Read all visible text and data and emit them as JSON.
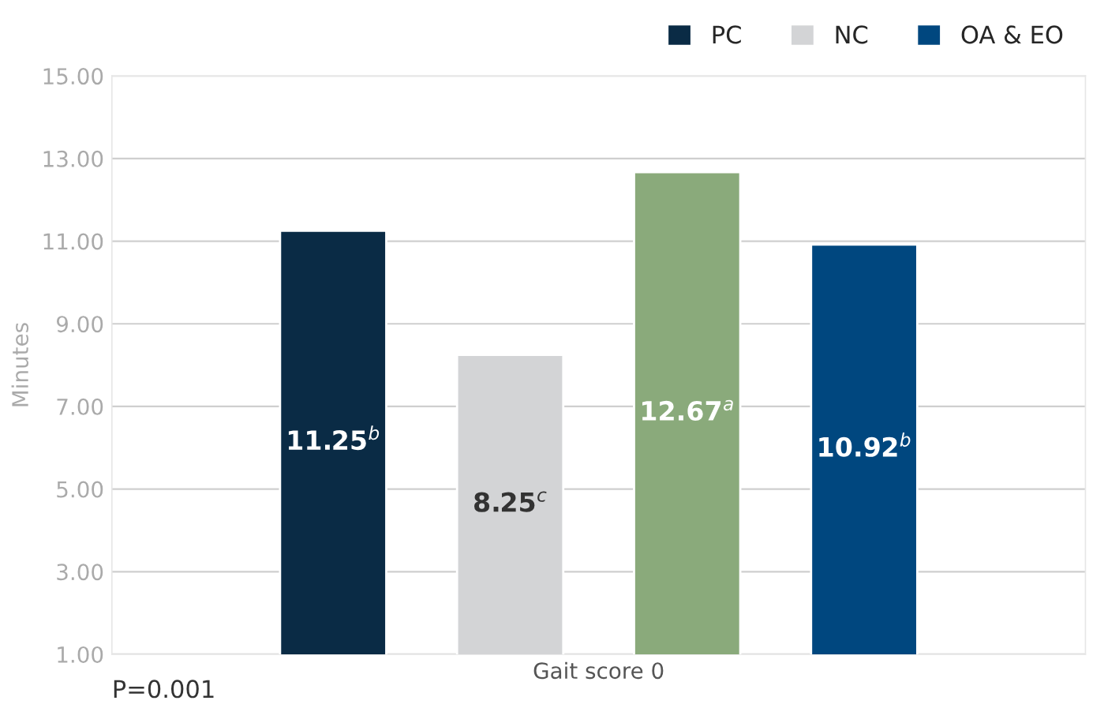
{
  "chart_data": {
    "type": "bar",
    "ylabel": "Minutes",
    "categories": [
      "Gait score 0"
    ],
    "series": [
      {
        "name": "PC",
        "color": "#0a2b45",
        "values": [
          11.25
        ],
        "value_labels": [
          "11.25$^{b}$"
        ]
      },
      {
        "name": "NC",
        "color": "#d3d4d6",
        "values": [
          8.25
        ],
        "value_labels": [
          "8.25$^{c}$"
        ]
      },
      {
        "color": "#8aaa7b",
        "values": [
          12.67
        ],
        "value_labels": [
          "12.67$^{a}$"
        ]
      },
      {
        "name": "OA & EO",
        "color": "#00477f",
        "values": [
          10.92
        ],
        "value_labels": [
          "10.92$^{b}$"
        ]
      }
    ],
    "ylim": [
      1,
      15
    ],
    "yticks": [
      {
        "value": 1,
        "label": "1.00"
      },
      {
        "value": 3,
        "label": "3.00"
      },
      {
        "value": 5,
        "label": "5.00"
      },
      {
        "value": 7,
        "label": "7.00"
      },
      {
        "value": 9,
        "label": "9.00"
      },
      {
        "value": 11,
        "label": "11.00"
      },
      {
        "value": 13,
        "label": "13.00"
      },
      {
        "value": 15,
        "label": "15.00"
      }
    ],
    "grid": "y",
    "legend": "top right",
    "annotations": [
      "P=0.001"
    ]
  }
}
